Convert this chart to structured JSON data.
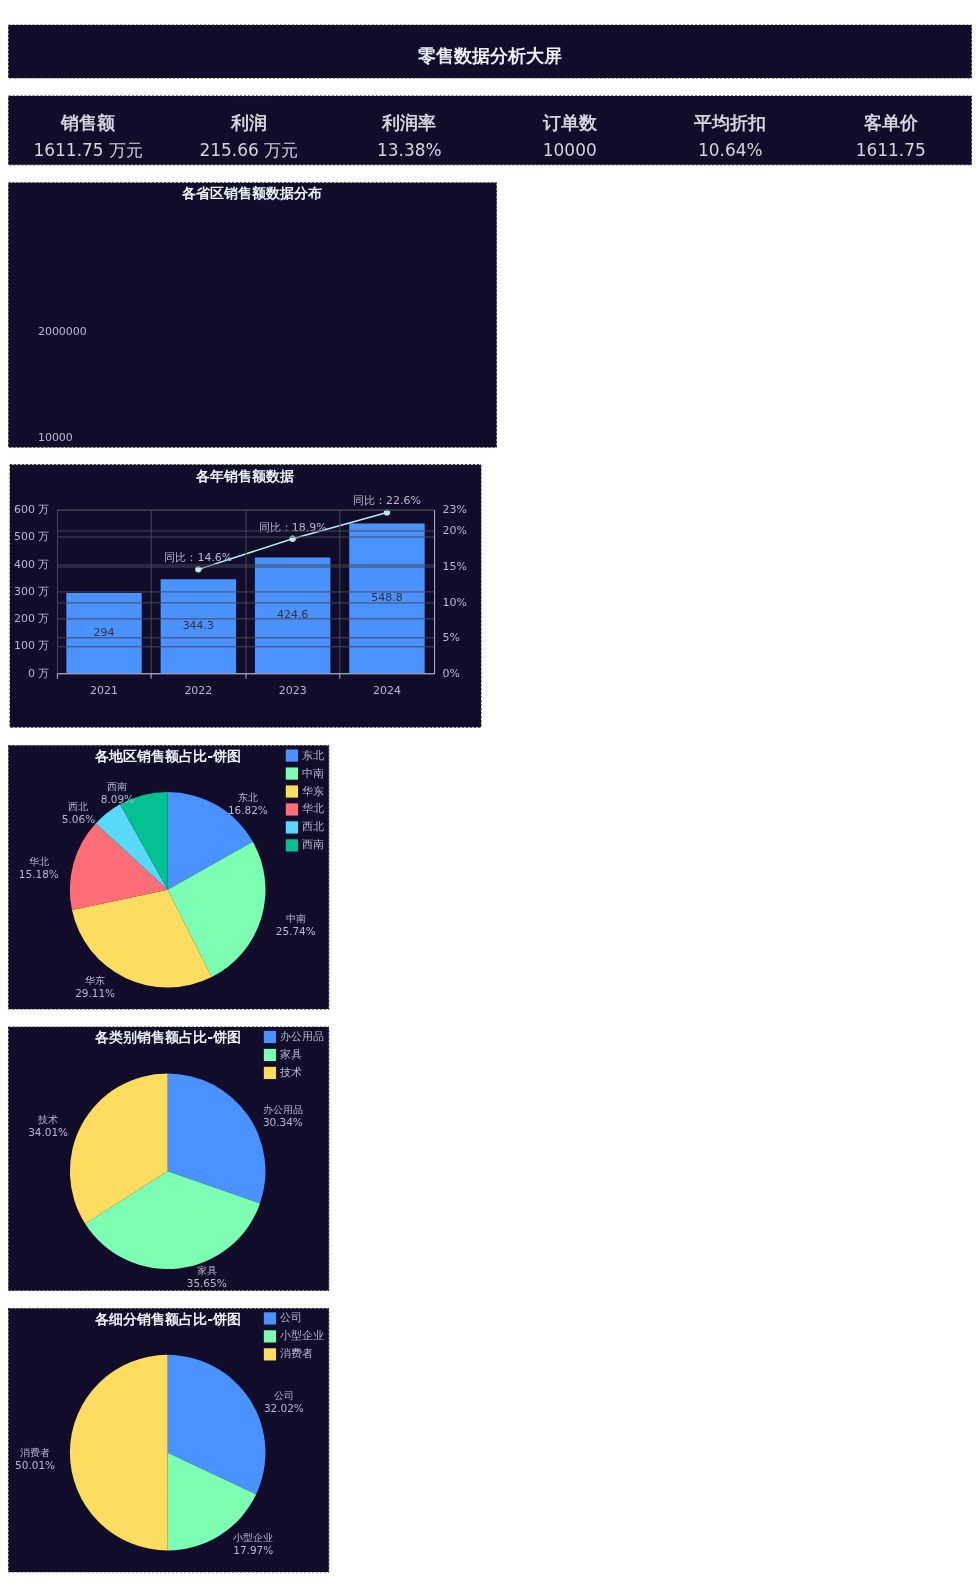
{
  "chart_data": [
    {
      "type": "other",
      "title": "零售数据分析大屏"
    },
    {
      "type": "other",
      "categories": [
        "销售额",
        "利润",
        "利润率",
        "订单数",
        "平均折扣",
        "客单价"
      ],
      "value_labels": [
        "1611.75 万元",
        "215.66 万元",
        "13.38%",
        "10000",
        "10.64%",
        "1611.75"
      ]
    },
    {
      "type": "other",
      "title": "各省区销售额数据分布",
      "annotations": [
        "2000000",
        "10000"
      ]
    },
    {
      "type": "bar",
      "title": "各年销售额数据",
      "categories": [
        "2021",
        "2022",
        "2023",
        "2024"
      ],
      "series": [
        {
          "type": "bar",
          "color": "#4992ff",
          "values": [
            294,
            344.3,
            424.6,
            548.8
          ],
          "data_labels": true
        },
        {
          "type": "line",
          "axis": "y2",
          "color": "#b8ecf0",
          "marker": "circle",
          "values": [
            null,
            14.6,
            18.9,
            22.6
          ],
          "value_labels": [
            null,
            "同比：14.6%",
            "同比：18.9%",
            "同比：22.6%"
          ]
        }
      ],
      "ylim": [
        0,
        600
      ],
      "yticks": [
        {
          "value": 0,
          "label": "0 万"
        },
        {
          "value": 100,
          "label": "100 万"
        },
        {
          "value": 200,
          "label": "200 万"
        },
        {
          "value": 300,
          "label": "300 万"
        },
        {
          "value": 400,
          "label": "400 万"
        },
        {
          "value": 500,
          "label": "500 万"
        },
        {
          "value": 600,
          "label": "600 万"
        }
      ],
      "y2lim": [
        0,
        23
      ],
      "y2ticks": [
        {
          "value": 0,
          "label": "0%"
        },
        {
          "value": 5,
          "label": "5%"
        },
        {
          "value": 10,
          "label": "10%"
        },
        {
          "value": 15,
          "label": "15%"
        },
        {
          "value": 20,
          "label": "20%"
        },
        {
          "value": 23,
          "label": "23%"
        }
      ],
      "grid": true
    },
    {
      "type": "pie",
      "title": "各地区销售额占比-饼图",
      "categories": [
        "东北",
        "中南",
        "华东",
        "华北",
        "西北",
        "西南"
      ],
      "values": [
        16.82,
        25.74,
        29.11,
        15.18,
        5.06,
        8.09
      ],
      "colors": [
        "#4992ff",
        "#7cffb2",
        "#fddd60",
        "#ff6e76",
        "#58d9f9",
        "#05c091"
      ],
      "value_labels": [
        "16.82%",
        "25.74%",
        "29.11%",
        "15.18%",
        "5.06%",
        "8.09%"
      ],
      "legend": "top right"
    },
    {
      "type": "pie",
      "title": "各类别销售额占比-饼图",
      "categories": [
        "办公用品",
        "家具",
        "技术"
      ],
      "values": [
        30.34,
        35.65,
        34.01
      ],
      "colors": [
        "#4992ff",
        "#7cffb2",
        "#fddd60"
      ],
      "value_labels": [
        "30.34%",
        "35.65%",
        "34.01%"
      ],
      "legend": "top right"
    },
    {
      "type": "pie",
      "title": "各细分销售额占比-饼图",
      "categories": [
        "公司",
        "小型企业",
        "消费者"
      ],
      "values": [
        32.02,
        17.97,
        50.01
      ],
      "colors": [
        "#4992ff",
        "#7cffb2",
        "#fddd60"
      ],
      "value_labels": [
        "32.02%",
        "17.97%",
        "50.01%"
      ],
      "legend": "top right"
    }
  ]
}
